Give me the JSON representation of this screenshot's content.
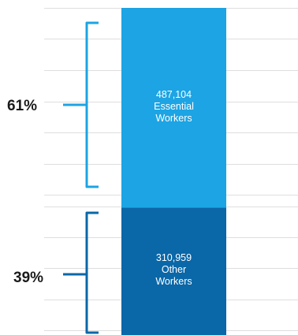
{
  "colors": {
    "essential": "#1ca4e4",
    "other": "#0a67a8",
    "grid": "#dedede",
    "bracket_essential": "#1ca4e4",
    "bracket_other": "#0a67a8"
  },
  "chart_data": {
    "type": "bar",
    "stacked": true,
    "grid": true,
    "series": [
      {
        "name": "Essential Workers",
        "values": [
          487104
        ],
        "label_value": "487,104",
        "label_line1": "Essential",
        "label_line2": "Workers",
        "percent": "61%"
      },
      {
        "name": "Other Workers",
        "values": [
          310959
        ],
        "label_value": "310,959",
        "label_line1": "Other",
        "label_line2": "Workers",
        "percent": "39%"
      }
    ]
  }
}
